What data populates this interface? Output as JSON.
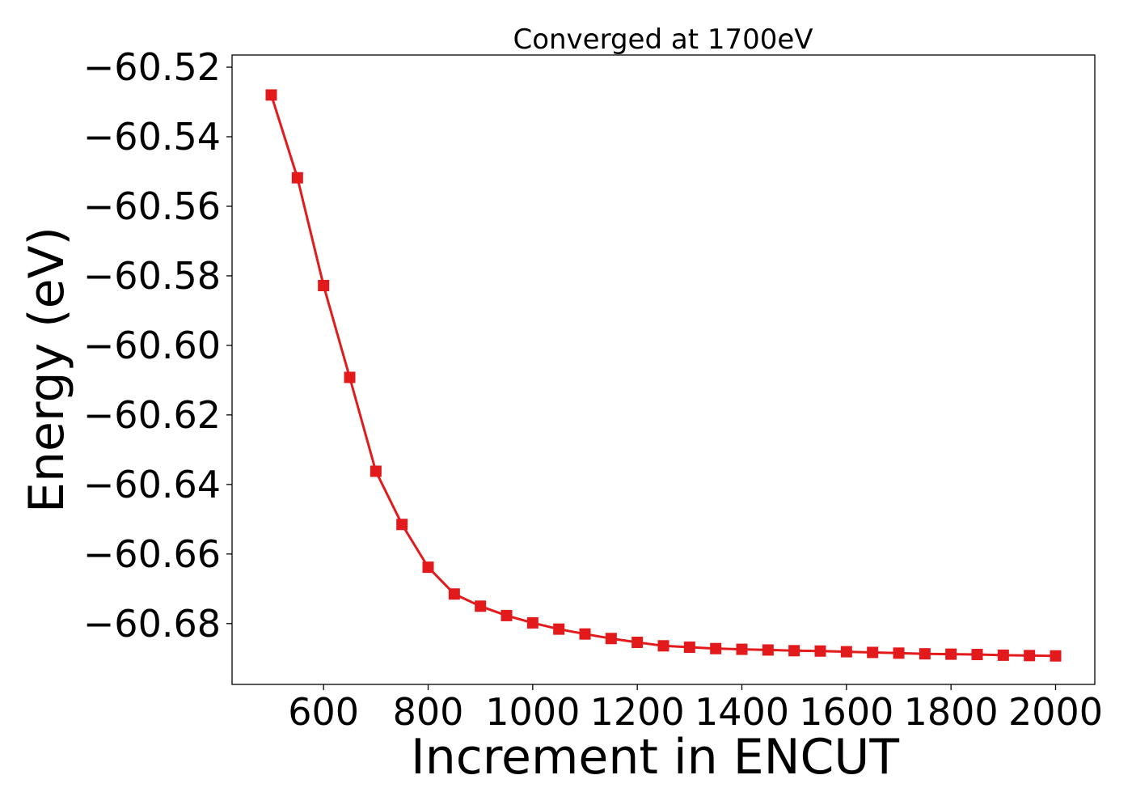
{
  "chart_data": {
    "type": "line",
    "title": "Converged at 1700eV",
    "xlabel": "Increment in ENCUT",
    "ylabel": "Energy (eV)",
    "xlim": [
      425,
      2075
    ],
    "ylim": [
      -60.6975,
      -60.5165
    ],
    "x_ticks": [
      600,
      800,
      1000,
      1200,
      1400,
      1600,
      1800,
      2000
    ],
    "y_ticks": [
      -60.52,
      -60.54,
      -60.56,
      -60.58,
      -60.6,
      -60.62,
      -60.64,
      -60.66,
      -60.68
    ],
    "y_tick_labels": [
      "−60.52",
      "−60.54",
      "−60.56",
      "−60.58",
      "−60.60",
      "−60.62",
      "−60.64",
      "−60.66",
      "−60.68"
    ],
    "grid": false,
    "marker": "square",
    "color": "#e31a1c",
    "series": [
      {
        "x": [
          500,
          550,
          600,
          650,
          700,
          750,
          800,
          850,
          900,
          950,
          1000,
          1050,
          1100,
          1150,
          1200,
          1250,
          1300,
          1350,
          1400,
          1450,
          1500,
          1550,
          1600,
          1650,
          1700,
          1750,
          1800,
          1850,
          1900,
          1950,
          2000
        ],
        "y": [
          -60.528,
          -60.5518,
          -60.5828,
          -60.6092,
          -60.6362,
          -60.6515,
          -60.6638,
          -60.6715,
          -60.675,
          -60.6777,
          -60.6798,
          -60.6816,
          -60.683,
          -60.6843,
          -60.6854,
          -60.6864,
          -60.6868,
          -60.6872,
          -60.6874,
          -60.6876,
          -60.6878,
          -60.6879,
          -60.6881,
          -60.6883,
          -60.6885,
          -60.6887,
          -60.6888,
          -60.6889,
          -60.6891,
          -60.6892,
          -60.6893
        ]
      }
    ]
  }
}
